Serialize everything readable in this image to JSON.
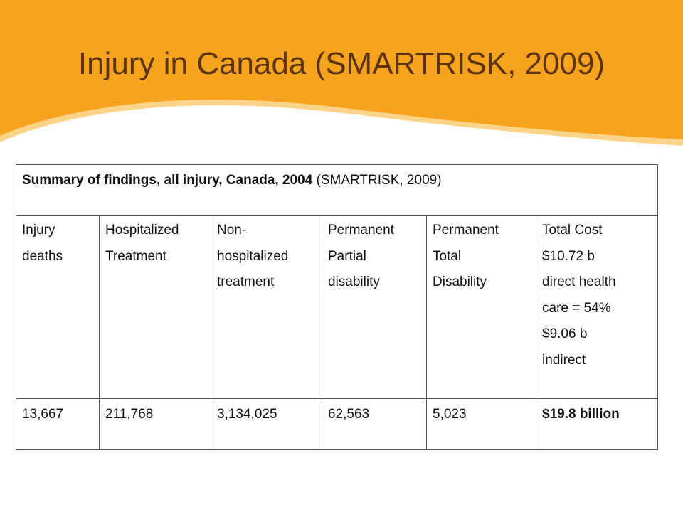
{
  "slide": {
    "title": "Injury in Canada (SMARTRISK, 2009)",
    "colors": {
      "banner_orange": "#f8a31e",
      "banner_highlight": "#fcd489",
      "title_brown": "#5b3410"
    }
  },
  "table": {
    "caption_bold": "Summary of findings, all injury, Canada, 2004",
    "caption_normal": " (SMARTRISK, 2009)",
    "columns": [
      {
        "header_lines": [
          "Injury",
          "deaths"
        ],
        "value": "13,667"
      },
      {
        "header_lines": [
          "Hospitalized",
          "Treatment"
        ],
        "value": "211,768"
      },
      {
        "header_lines": [
          "Non-",
          "hospitalized",
          "treatment"
        ],
        "value": "3,134,025"
      },
      {
        "header_lines": [
          "Permanent",
          "Partial",
          "disability"
        ],
        "value": "62,563"
      },
      {
        "header_lines": [
          "Permanent",
          "Total",
          "Disability"
        ],
        "value": "5,023"
      },
      {
        "header_lines": [
          "Total Cost",
          "$10.72 b",
          "direct health",
          "care = 54%",
          "$9.06 b",
          "indirect"
        ],
        "value": "$19.8 billion"
      }
    ]
  }
}
